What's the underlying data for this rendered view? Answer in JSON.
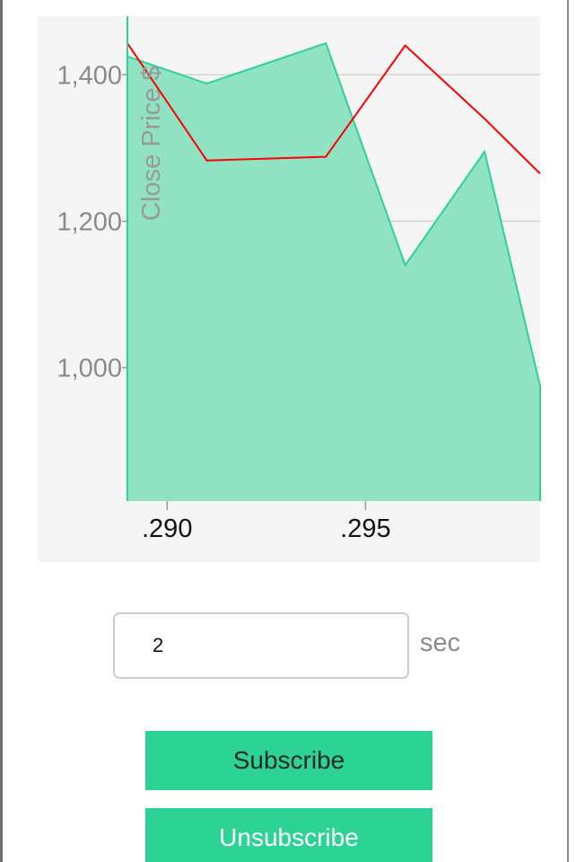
{
  "chart_data": {
    "type": "area",
    "ylabel": "Close Price $",
    "xlim": [
      0.289,
      0.2994
    ],
    "ylim": [
      818,
      1480
    ],
    "x_ticks": [
      0.29,
      0.295
    ],
    "x_tick_labels": [
      ".290",
      ".295"
    ],
    "y_ticks": [
      1000,
      1200,
      1400
    ],
    "y_tick_labels": [
      "1,000",
      "1,200",
      "1,400"
    ],
    "grid": "horizontal",
    "series": [
      {
        "type": "area",
        "color": "#2dd394",
        "fill": "#8fe3c3",
        "x": [
          0.289,
          0.291,
          0.294,
          0.296,
          0.298,
          0.2994
        ],
        "values": [
          1425,
          1388,
          1443,
          1140,
          1295,
          975
        ]
      },
      {
        "type": "line",
        "color": "#ff0000",
        "x": [
          0.289,
          0.291,
          0.294,
          0.296,
          0.298,
          0.2994
        ],
        "values": [
          1443,
          1283,
          1288,
          1440,
          1340,
          1265
        ]
      }
    ]
  },
  "controls": {
    "interval_value": "2",
    "interval_unit": "sec",
    "subscribe_label": "Subscribe",
    "unsubscribe_label": "Unsubscribe"
  }
}
